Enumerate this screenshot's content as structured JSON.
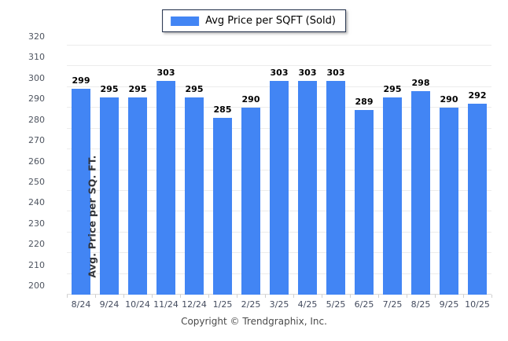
{
  "chart_data": {
    "type": "bar",
    "categories": [
      "8/24",
      "9/24",
      "10/24",
      "11/24",
      "12/24",
      "1/25",
      "2/25",
      "3/25",
      "4/25",
      "5/25",
      "6/25",
      "7/25",
      "8/25",
      "9/25",
      "10/25"
    ],
    "values": [
      299,
      295,
      295,
      303,
      295,
      285,
      290,
      303,
      303,
      303,
      289,
      295,
      298,
      290,
      292
    ],
    "title": "",
    "xlabel": "",
    "ylabel": "Avg. Price per SQ. FT.",
    "ylim": [
      200,
      320
    ],
    "ytick_step": 10,
    "grid": "horizontal",
    "legend_entries": [
      "Avg Price per SQFT (Sold)"
    ],
    "legend_position": "top-center",
    "bar_color": "#4285f4"
  },
  "legend": {
    "label": "Avg Price per SQFT (Sold)",
    "swatch_color": "#4285f4"
  },
  "axes": {
    "y_title": "Avg. Price per SQ. FT."
  },
  "footer": {
    "copyright": "Copyright © Trendgraphix, Inc."
  },
  "colors": {
    "bar": "#4285f4",
    "gridline": "#ececec",
    "baseline": "#d9d9d9",
    "background": "#ffffff"
  }
}
